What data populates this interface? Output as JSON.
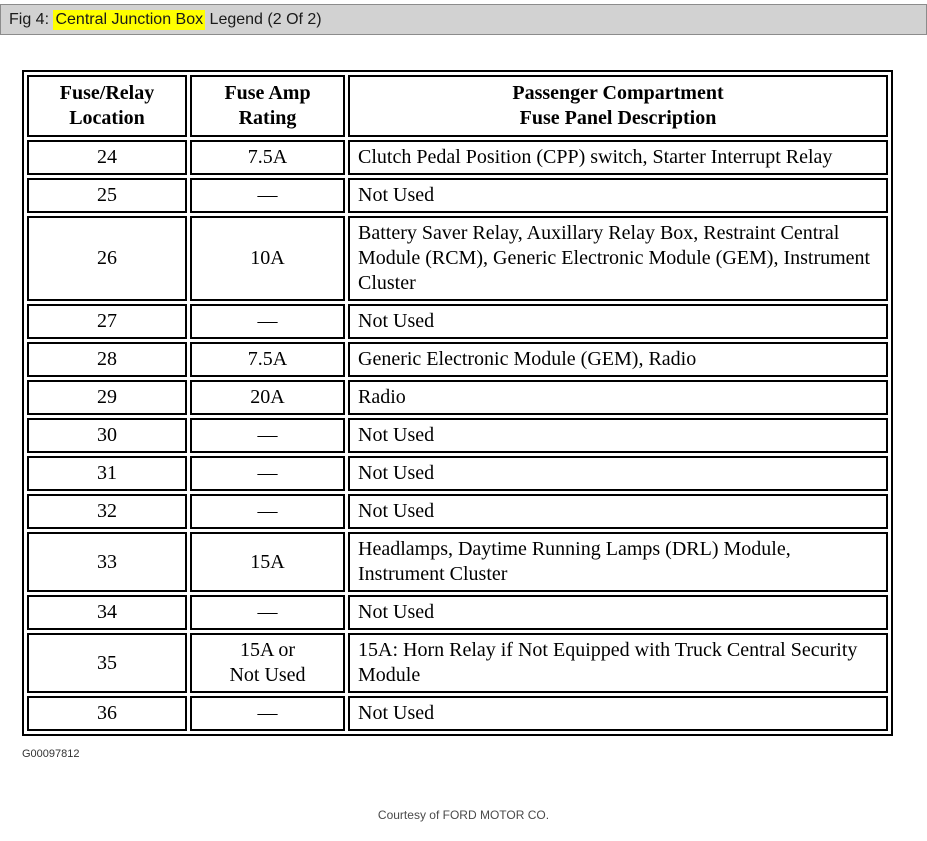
{
  "caption": {
    "prefix": "Fig 4: ",
    "highlight": "Central Junction Box",
    "suffix": " Legend (2 Of 2)",
    "highlight_color": "#ffff00",
    "highlight_style": "background:#ffff00"
  },
  "table": {
    "columns": [
      "Fuse/Relay\nLocation",
      "Fuse Amp\nRating",
      "Passenger Compartment\nFuse Panel Description"
    ],
    "rows": [
      {
        "location": "24",
        "rating": "7.5A",
        "description": "Clutch Pedal Position (CPP) switch, Starter Interrupt Relay"
      },
      {
        "location": "25",
        "rating": "—",
        "description": "Not Used"
      },
      {
        "location": "26",
        "rating": "10A",
        "description": "Battery Saver Relay, Auxillary Relay Box, Restraint Central Module (RCM), Generic Electronic Module (GEM), Instrument Cluster"
      },
      {
        "location": "27",
        "rating": "—",
        "description": "Not Used"
      },
      {
        "location": "28",
        "rating": "7.5A",
        "description": "Generic Electronic Module (GEM), Radio"
      },
      {
        "location": "29",
        "rating": "20A",
        "description": "Radio"
      },
      {
        "location": "30",
        "rating": "—",
        "description": "Not Used"
      },
      {
        "location": "31",
        "rating": "—",
        "description": "Not Used"
      },
      {
        "location": "32",
        "rating": "—",
        "description": "Not Used"
      },
      {
        "location": "33",
        "rating": "15A",
        "description": "Headlamps, Daytime Running Lamps (DRL) Module, Instrument Cluster"
      },
      {
        "location": "34",
        "rating": "—",
        "description": "Not Used"
      },
      {
        "location": "35",
        "rating": "15A or\nNot Used",
        "description": "15A: Horn Relay if Not Equipped with Truck Central Security Module"
      },
      {
        "location": "36",
        "rating": "—",
        "description": "Not Used"
      }
    ]
  },
  "footer": {
    "figure_id": "G00097812",
    "courtesy": "Courtesy of FORD MOTOR CO."
  }
}
